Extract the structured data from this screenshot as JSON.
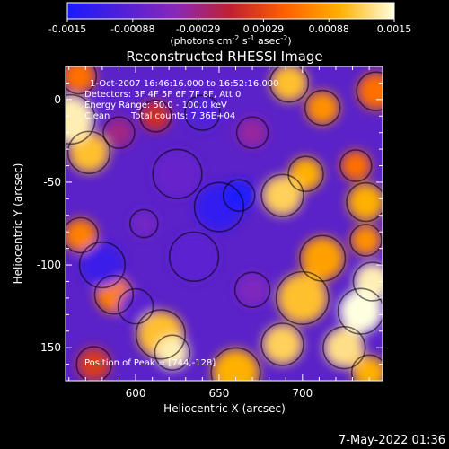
{
  "chart_data": {
    "type": "heatmap",
    "title": "Reconstructed RHESSI Image",
    "xlabel": "Heliocentric X (arcsec)",
    "ylabel": "Heliocentric Y (arcsec)",
    "xlim": [
      558,
      748
    ],
    "ylim": [
      -170,
      20
    ],
    "xticks": [
      600,
      650,
      700
    ],
    "yticks": [
      0,
      -50,
      -100,
      -150
    ],
    "colorbar": {
      "range": [
        -0.0015,
        0.0015
      ],
      "ticks": [
        "-0.0015",
        "-0.00088",
        "-0.00029",
        "0.00029",
        "0.00088",
        "0.0015"
      ],
      "label_main": "(photons cm",
      "label_exp1": "-2",
      "label_mid": " s",
      "label_exp2": "-1",
      "label_end": " asec",
      "label_exp3": "-2",
      "label_close": ")",
      "colors": [
        "#1a1aff",
        "#5020d8",
        "#8a28b8",
        "#c02030",
        "#ff6000",
        "#ffb000",
        "#ffffe0"
      ]
    },
    "annotations": {
      "time_range": "1-Oct-2007 16:46:16.000 to 16:52:16.000",
      "detectors": "Detectors: 3F 4F 5F 6F 7F 8F, Att 0",
      "energy_range": "Energy Range: 50.0 - 100.0 keV",
      "clean": "Clean",
      "total_counts": "Total counts: 7.36E+04",
      "peak": "Position of Peak = [744,-128]"
    },
    "blobs": [
      {
        "x": 561,
        "y": -12,
        "r": 14,
        "v": 0.0014
      },
      {
        "x": 572,
        "y": -32,
        "r": 12,
        "v": 0.0011
      },
      {
        "x": 566,
        "y": 14,
        "r": 10,
        "v": 0.0006
      },
      {
        "x": 567,
        "y": -82,
        "r": 10,
        "v": 0.0007
      },
      {
        "x": 590,
        "y": -20,
        "r": 9,
        "v": -0.0003
      },
      {
        "x": 587,
        "y": -118,
        "r": 11,
        "v": 0.0007
      },
      {
        "x": 612,
        "y": -10,
        "r": 9,
        "v": 0.0001
      },
      {
        "x": 615,
        "y": -142,
        "r": 14,
        "v": 0.0011
      },
      {
        "x": 622,
        "y": -153,
        "r": 10,
        "v": 0.0014
      },
      {
        "x": 575,
        "y": -160,
        "r": 10,
        "v": 0.0002
      },
      {
        "x": 660,
        "y": -165,
        "r": 14,
        "v": 0.001
      },
      {
        "x": 688,
        "y": -148,
        "r": 12,
        "v": 0.0012
      },
      {
        "x": 700,
        "y": -120,
        "r": 15,
        "v": 0.0011
      },
      {
        "x": 712,
        "y": -96,
        "r": 13,
        "v": 0.0009
      },
      {
        "x": 735,
        "y": -128,
        "r": 13,
        "v": 0.0015
      },
      {
        "x": 742,
        "y": -110,
        "r": 11,
        "v": 0.0014
      },
      {
        "x": 725,
        "y": -150,
        "r": 12,
        "v": 0.0013
      },
      {
        "x": 740,
        "y": -165,
        "r": 10,
        "v": 0.001
      },
      {
        "x": 688,
        "y": -58,
        "r": 12,
        "v": 0.0012
      },
      {
        "x": 702,
        "y": -45,
        "r": 10,
        "v": 0.001
      },
      {
        "x": 738,
        "y": -62,
        "r": 11,
        "v": 0.001
      },
      {
        "x": 732,
        "y": -40,
        "r": 9,
        "v": 0.0006
      },
      {
        "x": 738,
        "y": -85,
        "r": 9,
        "v": 0.0008
      },
      {
        "x": 692,
        "y": 10,
        "r": 11,
        "v": 0.0011
      },
      {
        "x": 712,
        "y": -5,
        "r": 10,
        "v": 0.0008
      },
      {
        "x": 744,
        "y": 5,
        "r": 11,
        "v": 0.0006
      },
      {
        "x": 640,
        "y": -8,
        "r": 10,
        "v": -0.001
      },
      {
        "x": 625,
        "y": -45,
        "r": 14,
        "v": -0.0008
      },
      {
        "x": 650,
        "y": -65,
        "r": 14,
        "v": -0.0013
      },
      {
        "x": 662,
        "y": -58,
        "r": 9,
        "v": -0.0015
      },
      {
        "x": 635,
        "y": -95,
        "r": 14,
        "v": -0.0009
      },
      {
        "x": 580,
        "y": -100,
        "r": 13,
        "v": -0.0012
      },
      {
        "x": 600,
        "y": -125,
        "r": 10,
        "v": -0.0009
      },
      {
        "x": 670,
        "y": -115,
        "r": 10,
        "v": -0.0006
      },
      {
        "x": 605,
        "y": -75,
        "r": 8,
        "v": -0.0007
      },
      {
        "x": 670,
        "y": -20,
        "r": 9,
        "v": -0.0004
      }
    ]
  },
  "footer": {
    "date": "7-May-2022 01:36"
  }
}
